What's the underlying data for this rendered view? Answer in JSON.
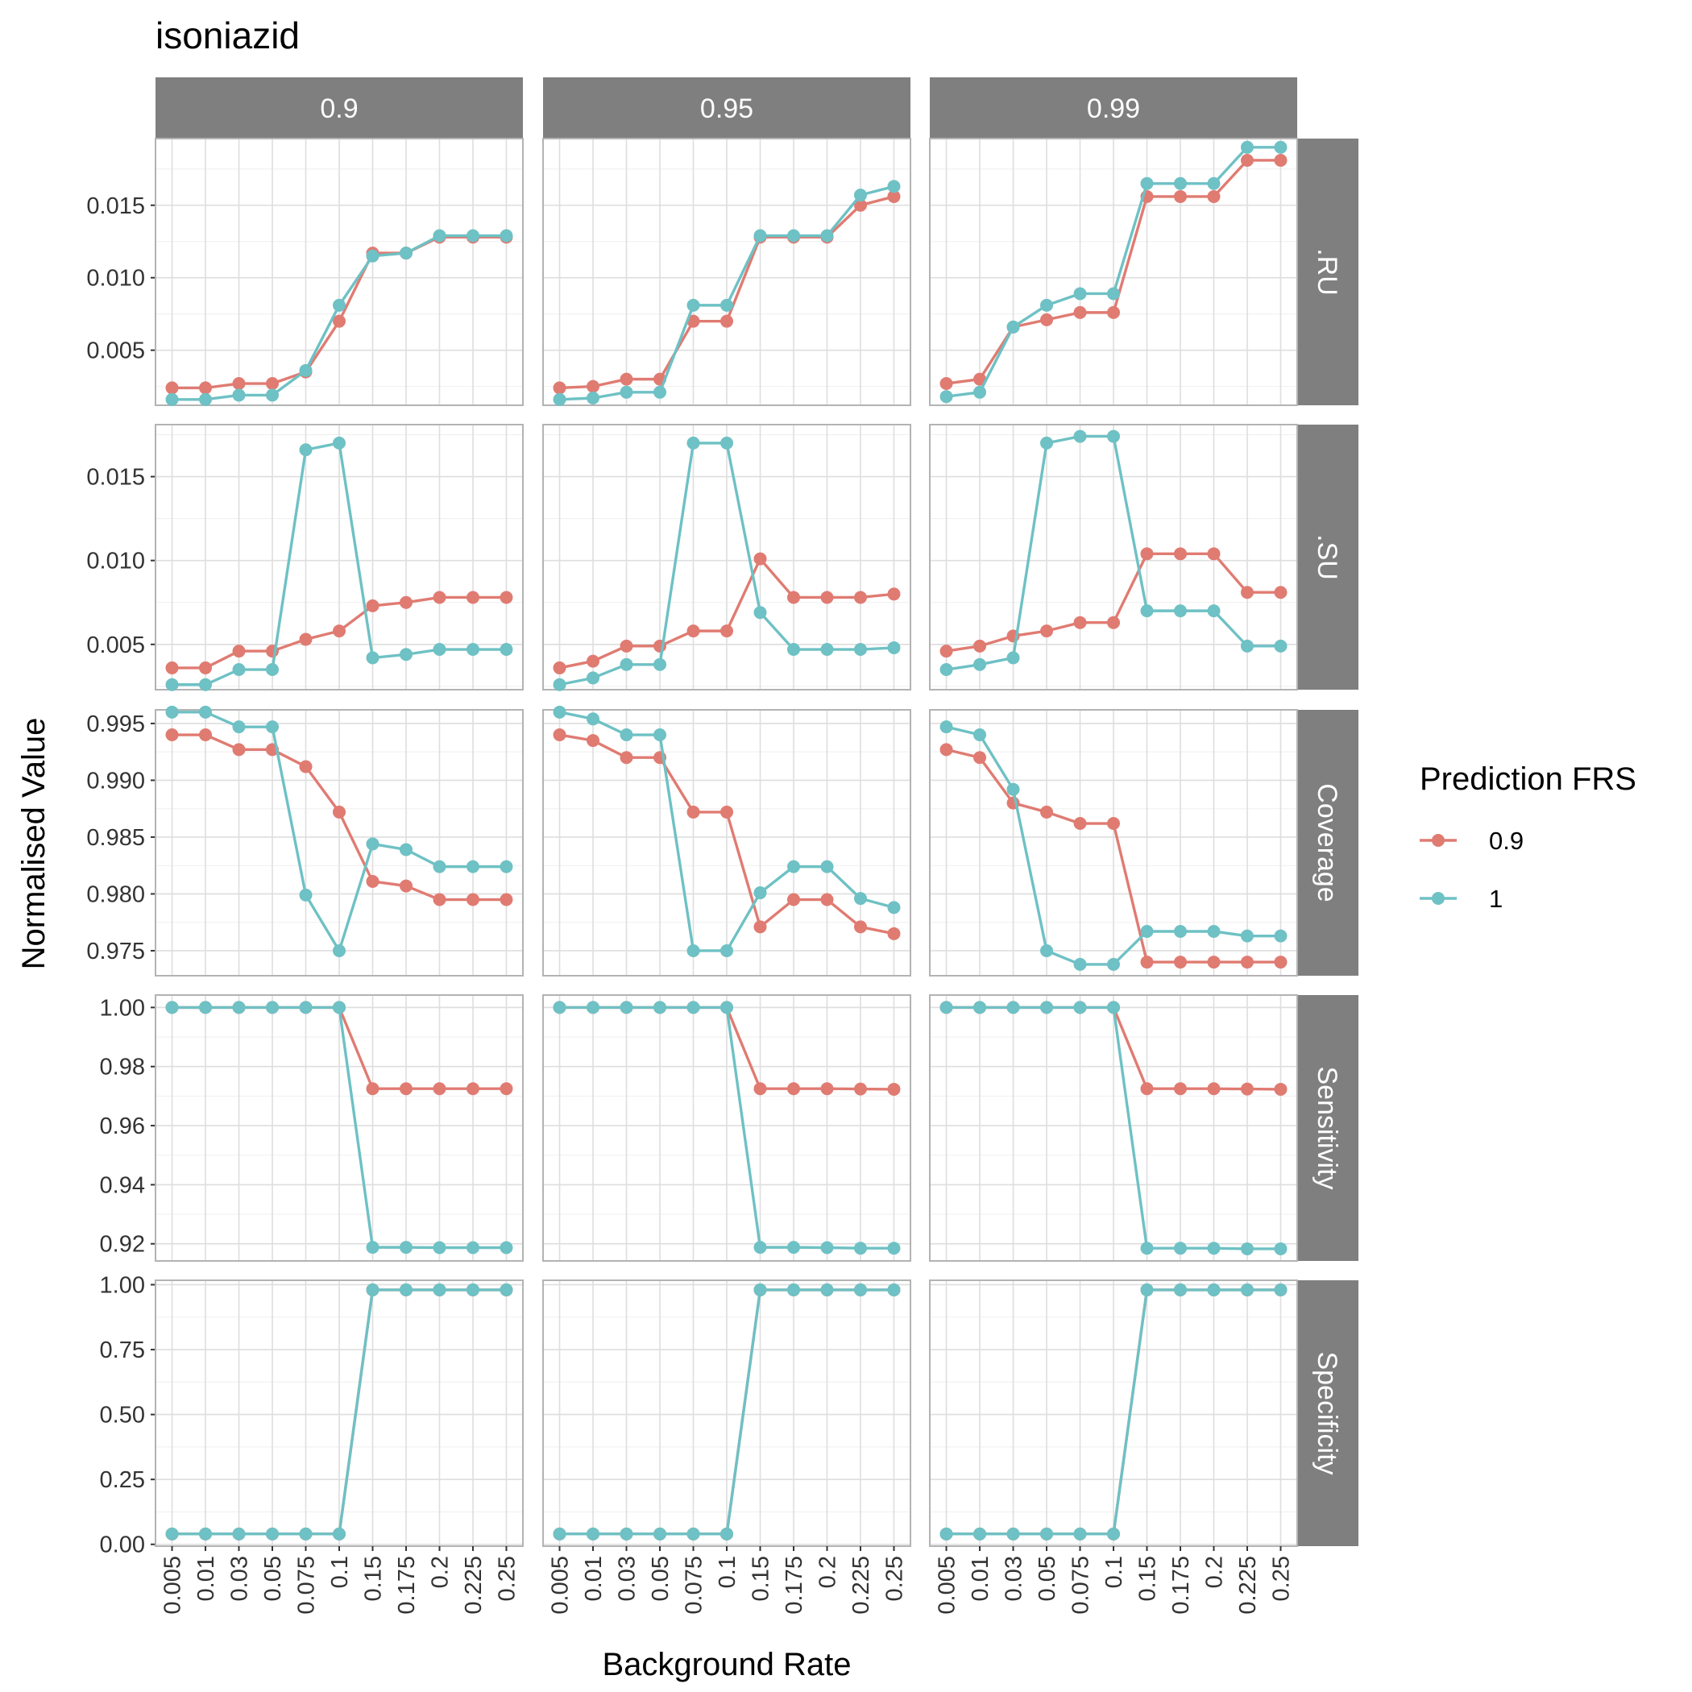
{
  "chart_data": {
    "type": "line",
    "title": "isoniazid",
    "xlabel": "Background Rate",
    "ylabel": "Normalised Value",
    "categories": [
      "0.005",
      "0.01",
      "0.03",
      "0.05",
      "0.075",
      "0.1",
      "0.15",
      "0.175",
      "0.2",
      "0.225",
      "0.25"
    ],
    "facet_columns": [
      "0.9",
      "0.95",
      "0.99"
    ],
    "facet_rows": [
      {
        "label": ".RU",
        "ylim": [
          0.0012,
          0.0196
        ],
        "ticks": [
          "0.005",
          "0.010",
          "0.015"
        ],
        "tick_values": [
          0.005,
          0.01,
          0.015
        ]
      },
      {
        "label": ".SU",
        "ylim": [
          0.0023,
          0.0181
        ],
        "ticks": [
          "0.005",
          "0.010",
          "0.015"
        ],
        "tick_values": [
          0.005,
          0.01,
          0.015
        ]
      },
      {
        "label": "Coverage",
        "ylim": [
          0.9728,
          0.9962
        ],
        "ticks": [
          "0.975",
          "0.980",
          "0.985",
          "0.990",
          "0.995"
        ],
        "tick_values": [
          0.975,
          0.98,
          0.985,
          0.99,
          0.995
        ]
      },
      {
        "label": "Sensitivity",
        "ylim": [
          0.9142,
          1.0042
        ],
        "ticks": [
          "0.92",
          "0.94",
          "0.96",
          "0.98",
          "1.00"
        ],
        "tick_values": [
          0.92,
          0.94,
          0.96,
          0.98,
          1.0
        ]
      },
      {
        "label": "Specificity",
        "ylim": [
          -0.007,
          1.017
        ],
        "ticks": [
          "0.00",
          "0.25",
          "0.50",
          "0.75",
          "1.00"
        ],
        "tick_values": [
          0.0,
          0.25,
          0.5,
          0.75,
          1.0
        ]
      }
    ],
    "legend": {
      "title": "Prediction FRS",
      "placement": "right",
      "entries": [
        {
          "label": "0.9",
          "color": "#E07B72"
        },
        {
          "label": "1",
          "color": "#6EC1C4"
        }
      ]
    },
    "grid": true,
    "panels": [
      [
        {
          "series": [
            {
              "name": "0.9",
              "values": [
                0.0024,
                0.0024,
                0.0027,
                0.0027,
                0.0035,
                0.007,
                0.0117,
                0.0117,
                0.0128,
                0.0128,
                0.0128
              ]
            },
            {
              "name": "1",
              "values": [
                0.0016,
                0.0016,
                0.0019,
                0.0019,
                0.0036,
                0.0081,
                0.0115,
                0.0117,
                0.0129,
                0.0129,
                0.0129
              ]
            }
          ]
        },
        {
          "series": [
            {
              "name": "0.9",
              "values": [
                0.0024,
                0.0025,
                0.003,
                0.003,
                0.007,
                0.007,
                0.0128,
                0.0128,
                0.0128,
                0.015,
                0.0156
              ]
            },
            {
              "name": "1",
              "values": [
                0.0016,
                0.0017,
                0.0021,
                0.0021,
                0.0081,
                0.0081,
                0.0129,
                0.0129,
                0.0129,
                0.0157,
                0.0163
              ]
            }
          ]
        },
        {
          "series": [
            {
              "name": "0.9",
              "values": [
                0.0027,
                0.003,
                0.0066,
                0.0071,
                0.0076,
                0.0076,
                0.0156,
                0.0156,
                0.0156,
                0.0181,
                0.0181
              ]
            },
            {
              "name": "1",
              "values": [
                0.0018,
                0.0021,
                0.0066,
                0.0081,
                0.0089,
                0.0089,
                0.0165,
                0.0165,
                0.0165,
                0.019,
                0.019
              ]
            }
          ]
        }
      ],
      [
        {
          "series": [
            {
              "name": "0.9",
              "values": [
                0.0036,
                0.0036,
                0.0046,
                0.0046,
                0.0053,
                0.0058,
                0.0073,
                0.0075,
                0.0078,
                0.0078,
                0.0078
              ]
            },
            {
              "name": "1",
              "values": [
                0.0026,
                0.0026,
                0.0035,
                0.0035,
                0.0166,
                0.017,
                0.0042,
                0.0044,
                0.0047,
                0.0047,
                0.0047
              ]
            }
          ]
        },
        {
          "series": [
            {
              "name": "0.9",
              "values": [
                0.0036,
                0.004,
                0.0049,
                0.0049,
                0.0058,
                0.0058,
                0.0101,
                0.0078,
                0.0078,
                0.0078,
                0.008
              ]
            },
            {
              "name": "1",
              "values": [
                0.0026,
                0.003,
                0.0038,
                0.0038,
                0.017,
                0.017,
                0.0069,
                0.0047,
                0.0047,
                0.0047,
                0.0048
              ]
            }
          ]
        },
        {
          "series": [
            {
              "name": "0.9",
              "values": [
                0.0046,
                0.0049,
                0.0055,
                0.0058,
                0.0063,
                0.0063,
                0.0104,
                0.0104,
                0.0104,
                0.0081,
                0.0081
              ]
            },
            {
              "name": "1",
              "values": [
                0.0035,
                0.0038,
                0.0042,
                0.017,
                0.0174,
                0.0174,
                0.007,
                0.007,
                0.007,
                0.0049,
                0.0049
              ]
            }
          ]
        }
      ],
      [
        {
          "series": [
            {
              "name": "0.9",
              "values": [
                0.994,
                0.994,
                0.9927,
                0.9927,
                0.9912,
                0.9872,
                0.9811,
                0.9807,
                0.9795,
                0.9795,
                0.9795
              ]
            },
            {
              "name": "1",
              "values": [
                0.996,
                0.996,
                0.9947,
                0.9947,
                0.9799,
                0.975,
                0.9844,
                0.9839,
                0.9824,
                0.9824,
                0.9824
              ]
            }
          ]
        },
        {
          "series": [
            {
              "name": "0.9",
              "values": [
                0.994,
                0.9935,
                0.992,
                0.992,
                0.9872,
                0.9872,
                0.9771,
                0.9795,
                0.9795,
                0.9771,
                0.9765
              ]
            },
            {
              "name": "1",
              "values": [
                0.996,
                0.9954,
                0.994,
                0.994,
                0.975,
                0.975,
                0.9801,
                0.9824,
                0.9824,
                0.9796,
                0.9788
              ]
            }
          ]
        },
        {
          "series": [
            {
              "name": "0.9",
              "values": [
                0.9927,
                0.992,
                0.988,
                0.9872,
                0.9862,
                0.9862,
                0.974,
                0.974,
                0.974,
                0.974,
                0.974
              ]
            },
            {
              "name": "1",
              "values": [
                0.9947,
                0.994,
                0.9892,
                0.975,
                0.9738,
                0.9738,
                0.9767,
                0.9767,
                0.9767,
                0.9763,
                0.9763
              ]
            }
          ]
        }
      ],
      [
        {
          "series": [
            {
              "name": "0.9",
              "values": [
                1.0,
                1.0,
                1.0,
                1.0,
                1.0,
                1.0,
                0.9725,
                0.9725,
                0.9725,
                0.9725,
                0.9725
              ]
            },
            {
              "name": "1",
              "values": [
                1.0,
                1.0,
                1.0,
                1.0,
                1.0,
                1.0,
                0.9188,
                0.9188,
                0.9187,
                0.9187,
                0.9187
              ]
            }
          ]
        },
        {
          "series": [
            {
              "name": "0.9",
              "values": [
                1.0,
                1.0,
                1.0,
                1.0,
                1.0,
                1.0,
                0.9725,
                0.9725,
                0.9725,
                0.9724,
                0.9723
              ]
            },
            {
              "name": "1",
              "values": [
                1.0,
                1.0,
                1.0,
                1.0,
                1.0,
                1.0,
                0.9188,
                0.9188,
                0.9187,
                0.9185,
                0.9185
              ]
            }
          ]
        },
        {
          "series": [
            {
              "name": "0.9",
              "values": [
                1.0,
                1.0,
                1.0,
                1.0,
                1.0,
                1.0,
                0.9725,
                0.9725,
                0.9725,
                0.9724,
                0.9723
              ]
            },
            {
              "name": "1",
              "values": [
                1.0,
                1.0,
                1.0,
                1.0,
                1.0,
                1.0,
                0.9185,
                0.9185,
                0.9185,
                0.9183,
                0.9183
              ]
            }
          ]
        }
      ],
      [
        {
          "series": [
            {
              "name": "0.9",
              "values": [
                0.04,
                0.04,
                0.04,
                0.04,
                0.04,
                0.04,
                0.98,
                0.98,
                0.98,
                0.98,
                0.98
              ]
            },
            {
              "name": "1",
              "values": [
                0.04,
                0.04,
                0.04,
                0.04,
                0.04,
                0.04,
                0.98,
                0.98,
                0.98,
                0.98,
                0.98
              ]
            }
          ]
        },
        {
          "series": [
            {
              "name": "0.9",
              "values": [
                0.04,
                0.04,
                0.04,
                0.04,
                0.04,
                0.04,
                0.98,
                0.98,
                0.98,
                0.98,
                0.98
              ]
            },
            {
              "name": "1",
              "values": [
                0.04,
                0.04,
                0.04,
                0.04,
                0.04,
                0.04,
                0.98,
                0.98,
                0.98,
                0.98,
                0.98
              ]
            }
          ]
        },
        {
          "series": [
            {
              "name": "0.9",
              "values": [
                0.04,
                0.04,
                0.04,
                0.04,
                0.04,
                0.04,
                0.98,
                0.98,
                0.98,
                0.98,
                0.98
              ]
            },
            {
              "name": "1",
              "values": [
                0.04,
                0.04,
                0.04,
                0.04,
                0.04,
                0.04,
                0.98,
                0.98,
                0.98,
                0.98,
                0.98
              ]
            }
          ]
        }
      ]
    ]
  }
}
